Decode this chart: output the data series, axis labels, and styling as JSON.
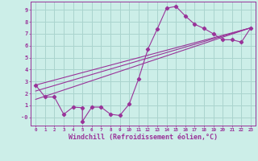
{
  "background_color": "#cceee8",
  "grid_color": "#aad4ce",
  "line_color": "#993399",
  "xlabel": "Windchill (Refroidissement éolien,°C)",
  "xlabel_fontsize": 6.0,
  "xtick_labels": [
    "0",
    "1",
    "2",
    "3",
    "4",
    "5",
    "6",
    "7",
    "8",
    "9",
    "10",
    "11",
    "12",
    "13",
    "14",
    "15",
    "16",
    "17",
    "18",
    "19",
    "20",
    "21",
    "22",
    "23"
  ],
  "ytick_labels": [
    "-0",
    "1",
    "2",
    "3",
    "4",
    "5",
    "6",
    "7",
    "8",
    "9"
  ],
  "xlim": [
    -0.5,
    23.5
  ],
  "ylim": [
    -0.7,
    9.7
  ],
  "line1_x": [
    0,
    1,
    2,
    3,
    4,
    5,
    5,
    6,
    7,
    8,
    9,
    10,
    11,
    12,
    13,
    14,
    15,
    16,
    17,
    18,
    19,
    20,
    21,
    22,
    23
  ],
  "line1_y": [
    2.7,
    1.7,
    1.7,
    0.25,
    0.85,
    0.8,
    -0.35,
    0.85,
    0.85,
    0.25,
    0.15,
    1.1,
    3.2,
    5.7,
    7.4,
    9.15,
    9.3,
    8.5,
    7.8,
    7.45,
    7.0,
    6.5,
    6.5,
    6.3,
    7.5
  ],
  "line2_x": [
    0,
    23
  ],
  "line2_y": [
    1.5,
    7.5
  ],
  "line3_x": [
    0,
    23
  ],
  "line3_y": [
    2.2,
    7.5
  ],
  "line4_x": [
    0,
    23
  ],
  "line4_y": [
    2.7,
    7.5
  ]
}
